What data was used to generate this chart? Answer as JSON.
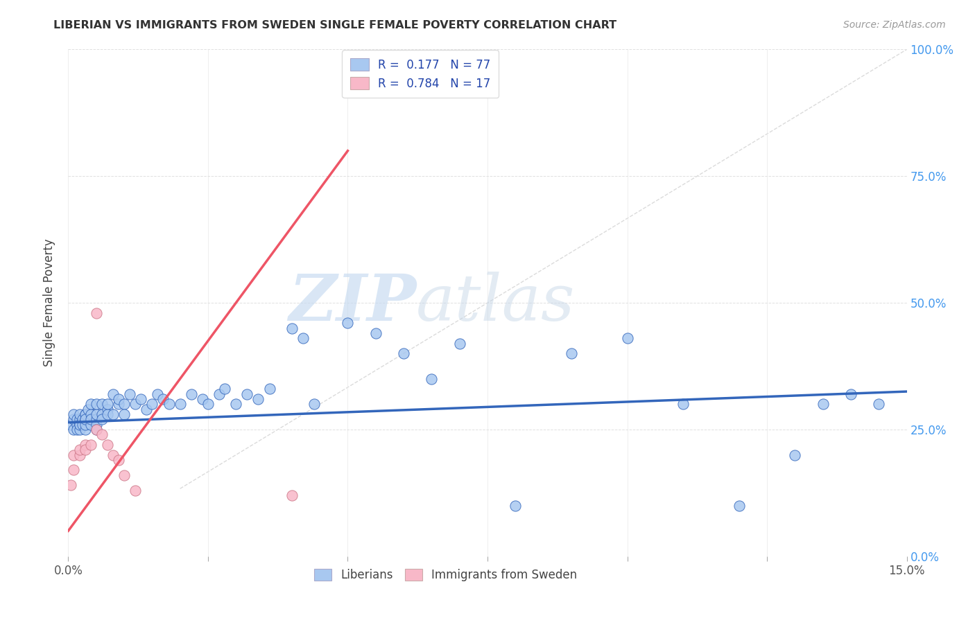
{
  "title": "LIBERIAN VS IMMIGRANTS FROM SWEDEN SINGLE FEMALE POVERTY CORRELATION CHART",
  "source": "Source: ZipAtlas.com",
  "ylabel": "Single Female Poverty",
  "yticks": [
    "0.0%",
    "25.0%",
    "50.0%",
    "75.0%",
    "100.0%"
  ],
  "ytick_vals": [
    0.0,
    0.25,
    0.5,
    0.75,
    1.0
  ],
  "xlim": [
    0.0,
    0.15
  ],
  "ylim": [
    0.0,
    1.0
  ],
  "watermark_zip": "ZIP",
  "watermark_atlas": "atlas",
  "color_liberian": "#a8c8f0",
  "color_sweden": "#f8b8c8",
  "color_line_liberian": "#3366bb",
  "color_line_sweden": "#ee5566",
  "color_diag": "#cccccc",
  "lib_x": [
    0.0005,
    0.001,
    0.001,
    0.001,
    0.0015,
    0.0015,
    0.0015,
    0.002,
    0.002,
    0.002,
    0.002,
    0.002,
    0.0025,
    0.0025,
    0.003,
    0.003,
    0.003,
    0.003,
    0.003,
    0.003,
    0.0035,
    0.004,
    0.004,
    0.004,
    0.004,
    0.005,
    0.005,
    0.005,
    0.005,
    0.005,
    0.006,
    0.006,
    0.006,
    0.007,
    0.007,
    0.007,
    0.008,
    0.008,
    0.009,
    0.009,
    0.01,
    0.01,
    0.011,
    0.012,
    0.013,
    0.014,
    0.015,
    0.016,
    0.017,
    0.018,
    0.02,
    0.022,
    0.024,
    0.025,
    0.027,
    0.028,
    0.03,
    0.032,
    0.034,
    0.036,
    0.04,
    0.042,
    0.044,
    0.05,
    0.055,
    0.06,
    0.065,
    0.07,
    0.08,
    0.09,
    0.1,
    0.11,
    0.12,
    0.13,
    0.135,
    0.14,
    0.145
  ],
  "lib_y": [
    0.26,
    0.27,
    0.28,
    0.25,
    0.26,
    0.27,
    0.25,
    0.27,
    0.26,
    0.28,
    0.25,
    0.26,
    0.27,
    0.26,
    0.28,
    0.25,
    0.27,
    0.26,
    0.28,
    0.27,
    0.29,
    0.26,
    0.28,
    0.27,
    0.3,
    0.27,
    0.26,
    0.28,
    0.25,
    0.3,
    0.28,
    0.27,
    0.3,
    0.29,
    0.28,
    0.3,
    0.32,
    0.28,
    0.3,
    0.31,
    0.3,
    0.28,
    0.32,
    0.3,
    0.31,
    0.29,
    0.3,
    0.32,
    0.31,
    0.3,
    0.3,
    0.32,
    0.31,
    0.3,
    0.32,
    0.33,
    0.3,
    0.32,
    0.31,
    0.33,
    0.45,
    0.43,
    0.3,
    0.46,
    0.44,
    0.4,
    0.35,
    0.42,
    0.1,
    0.4,
    0.43,
    0.3,
    0.1,
    0.2,
    0.3,
    0.32,
    0.3
  ],
  "swe_x": [
    0.0005,
    0.001,
    0.001,
    0.002,
    0.002,
    0.003,
    0.003,
    0.004,
    0.005,
    0.005,
    0.006,
    0.007,
    0.008,
    0.009,
    0.01,
    0.012,
    0.04
  ],
  "swe_y": [
    0.14,
    0.17,
    0.2,
    0.2,
    0.21,
    0.22,
    0.21,
    0.22,
    0.25,
    0.48,
    0.24,
    0.22,
    0.2,
    0.19,
    0.16,
    0.13,
    0.12
  ],
  "lib_trend_x": [
    0.0,
    0.15
  ],
  "lib_trend_y": [
    0.264,
    0.325
  ],
  "swe_trend_x": [
    0.0,
    0.05
  ],
  "swe_trend_y": [
    0.05,
    0.8
  ]
}
